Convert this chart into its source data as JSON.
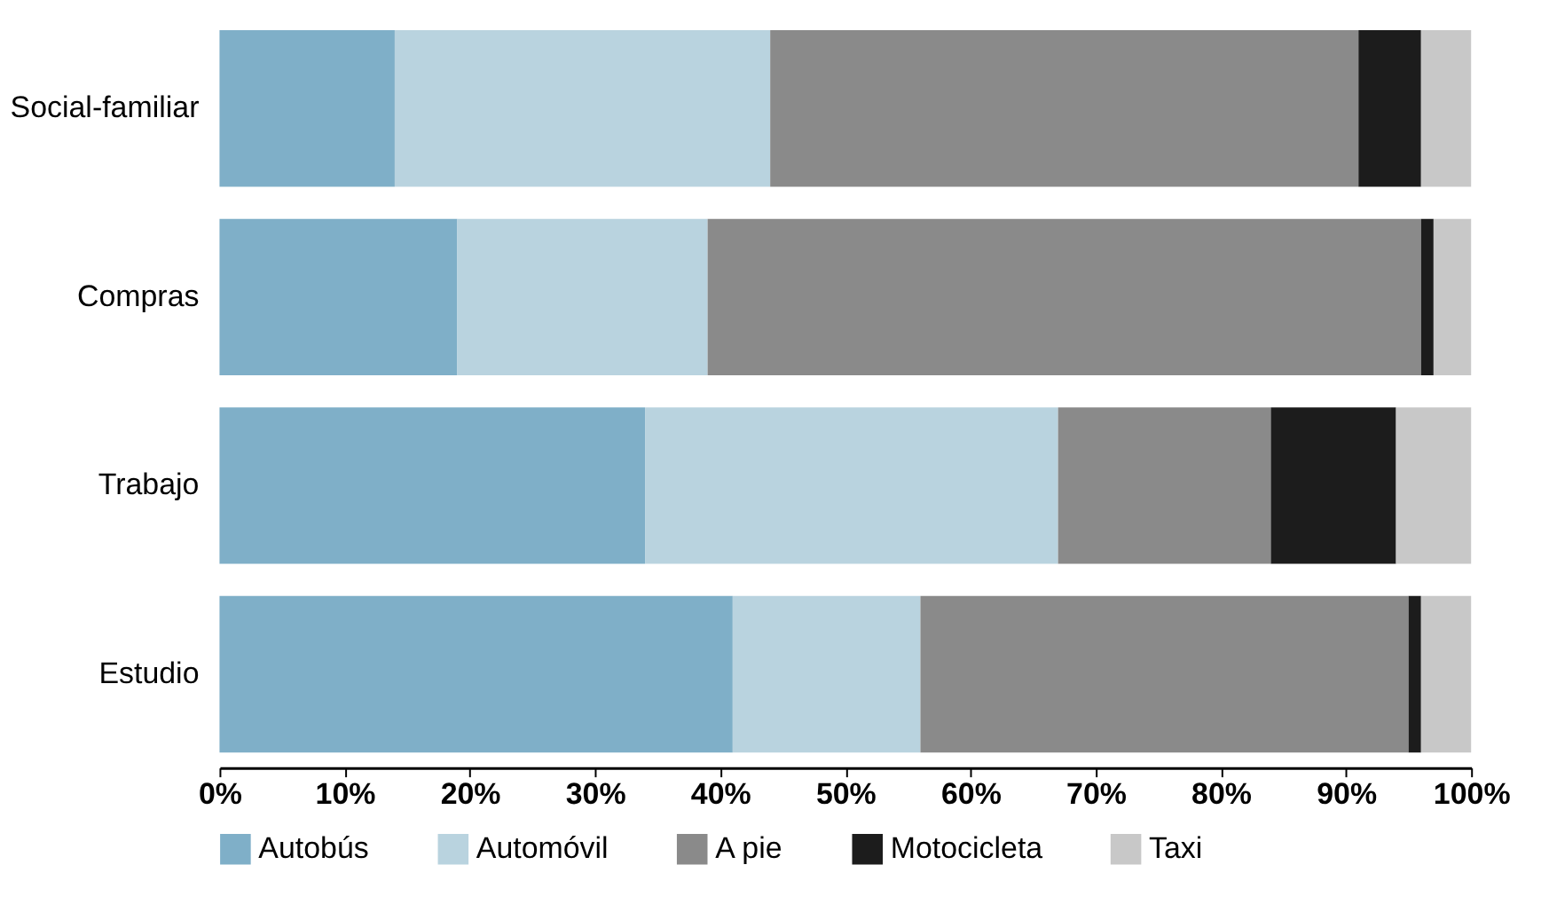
{
  "chart_data": {
    "type": "bar",
    "orientation": "horizontal",
    "stacked": true,
    "categories": [
      "Social-familiar",
      "Compras",
      "Trabajo",
      "Estudio"
    ],
    "series": [
      {
        "name": "Autobús",
        "color": "#7fafc8",
        "values": [
          14,
          19,
          34,
          41
        ]
      },
      {
        "name": "Automóvil",
        "color": "#b9d3df",
        "values": [
          30,
          20,
          33,
          15
        ]
      },
      {
        "name": "A pie",
        "color": "#8a8a8a",
        "values": [
          47,
          57,
          17,
          39
        ]
      },
      {
        "name": "Motocicleta",
        "color": "#1c1c1c",
        "values": [
          5,
          1,
          10,
          1
        ]
      },
      {
        "name": "Taxi",
        "color": "#c8c8c8",
        "values": [
          4,
          3,
          6,
          4
        ]
      }
    ],
    "xlim": [
      0,
      100
    ],
    "xticks": [
      {
        "value": 0,
        "label": "0%"
      },
      {
        "value": 10,
        "label": "10%"
      },
      {
        "value": 20,
        "label": "20%"
      },
      {
        "value": 30,
        "label": "30%"
      },
      {
        "value": 40,
        "label": "40%"
      },
      {
        "value": 50,
        "label": "50%"
      },
      {
        "value": 60,
        "label": "60%"
      },
      {
        "value": 70,
        "label": "70%"
      },
      {
        "value": 80,
        "label": "80%"
      },
      {
        "value": 90,
        "label": "90%"
      },
      {
        "value": 100,
        "label": "100%"
      }
    ],
    "grid": false,
    "legend": "bottom"
  }
}
